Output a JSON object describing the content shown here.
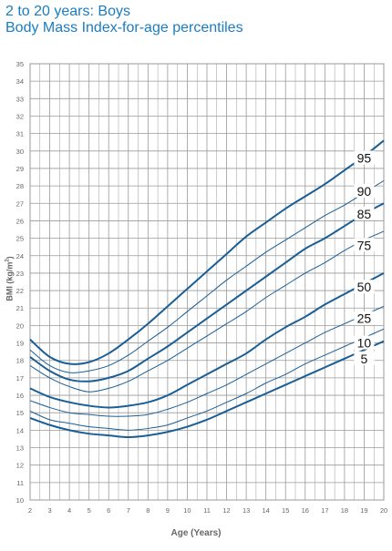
{
  "title": "2 to 20 years: Boys",
  "subtitle": "Body Mass Index-for-age percentiles",
  "colors": {
    "title": "#1a7cc1",
    "curve": "#1a5e96",
    "grid": "#9a9a9a",
    "axis_text": "#666666",
    "background": "#ffffff"
  },
  "chart_data": {
    "type": "line",
    "title": "2 to 20 years: Boys",
    "subtitle": "Body Mass Index-for-age percentiles",
    "xlabel": "Age (Years)",
    "ylabel": "BMI (kg/m²)",
    "ylabel_main": "BMI (kg/m",
    "ylabel_sup": "2",
    "ylabel_end": ")",
    "xlim": [
      2,
      20
    ],
    "ylim": [
      10,
      35
    ],
    "x_ticks": [
      2,
      3,
      4,
      5,
      6,
      7,
      8,
      9,
      10,
      11,
      12,
      13,
      14,
      15,
      16,
      17,
      18,
      19,
      20
    ],
    "y_ticks": [
      10,
      11,
      12,
      13,
      14,
      15,
      16,
      17,
      18,
      19,
      20,
      21,
      22,
      23,
      24,
      25,
      26,
      27,
      28,
      29,
      30,
      31,
      32,
      33,
      34,
      35
    ],
    "grid": true,
    "x": [
      2,
      3,
      4,
      5,
      6,
      7,
      8,
      9,
      10,
      11,
      12,
      13,
      14,
      15,
      16,
      17,
      18,
      19,
      20
    ],
    "series": [
      {
        "name": "95",
        "bold": true,
        "values": [
          19.2,
          18.2,
          17.8,
          17.9,
          18.4,
          19.2,
          20.1,
          21.1,
          22.1,
          23.1,
          24.1,
          25.1,
          25.9,
          26.7,
          27.4,
          28.1,
          28.9,
          29.7,
          30.6
        ]
      },
      {
        "name": "90",
        "bold": false,
        "values": [
          18.6,
          17.7,
          17.3,
          17.4,
          17.7,
          18.3,
          19.1,
          19.9,
          20.8,
          21.7,
          22.6,
          23.4,
          24.2,
          24.9,
          25.6,
          26.3,
          26.9,
          27.6,
          28.3
        ]
      },
      {
        "name": "85",
        "bold": true,
        "values": [
          18.2,
          17.4,
          16.9,
          16.8,
          17.0,
          17.4,
          18.1,
          18.8,
          19.6,
          20.4,
          21.2,
          22.0,
          22.8,
          23.6,
          24.4,
          25.0,
          25.7,
          26.4,
          27.0
        ]
      },
      {
        "name": "75",
        "bold": false,
        "values": [
          17.7,
          17.0,
          16.5,
          16.2,
          16.4,
          16.8,
          17.4,
          18.0,
          18.7,
          19.4,
          20.1,
          20.8,
          21.6,
          22.3,
          23.0,
          23.6,
          24.3,
          24.9,
          25.4
        ]
      },
      {
        "name": "50",
        "bold": true,
        "values": [
          16.4,
          15.9,
          15.6,
          15.4,
          15.3,
          15.4,
          15.6,
          16.0,
          16.6,
          17.2,
          17.8,
          18.4,
          19.2,
          19.9,
          20.5,
          21.2,
          21.8,
          22.4,
          23.0
        ]
      },
      {
        "name": "25",
        "bold": false,
        "values": [
          15.7,
          15.3,
          15.0,
          14.9,
          14.8,
          14.8,
          14.9,
          15.2,
          15.6,
          16.1,
          16.6,
          17.2,
          17.8,
          18.4,
          19.0,
          19.6,
          20.1,
          20.6,
          21.1
        ]
      },
      {
        "name": "10",
        "bold": false,
        "values": [
          15.1,
          14.6,
          14.4,
          14.2,
          14.1,
          14.0,
          14.1,
          14.3,
          14.7,
          15.1,
          15.6,
          16.1,
          16.7,
          17.2,
          17.8,
          18.3,
          18.8,
          19.3,
          19.8
        ]
      },
      {
        "name": "5",
        "bold": true,
        "values": [
          14.7,
          14.3,
          14.0,
          13.8,
          13.7,
          13.6,
          13.7,
          13.9,
          14.2,
          14.6,
          15.1,
          15.6,
          16.1,
          16.6,
          17.1,
          17.6,
          18.1,
          18.6,
          19.1
        ]
      }
    ],
    "curve_labels": [
      {
        "text": "95",
        "x": 19.0,
        "y": 29.6
      },
      {
        "text": "90",
        "x": 19.0,
        "y": 27.7
      },
      {
        "text": "85",
        "x": 19.0,
        "y": 26.4
      },
      {
        "text": "75",
        "x": 19.0,
        "y": 24.6
      },
      {
        "text": "50",
        "x": 19.0,
        "y": 22.2
      },
      {
        "text": "25",
        "x": 19.0,
        "y": 20.4
      },
      {
        "text": "10",
        "x": 19.0,
        "y": 19.0
      },
      {
        "text": "5",
        "x": 19.0,
        "y": 18.1
      }
    ]
  }
}
